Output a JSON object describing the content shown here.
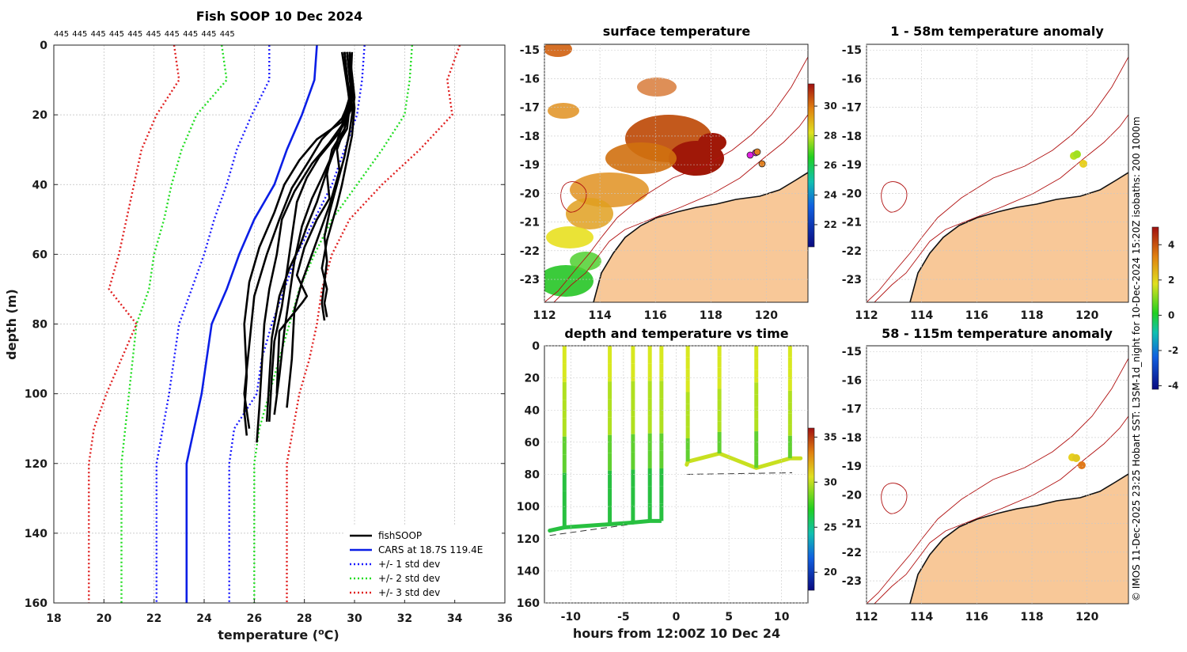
{
  "colors": {
    "fishsoop": "#000000",
    "cars": "#0a1ee6",
    "std1": "#1a1aff",
    "std2": "#22dd22",
    "std3": "#e02020",
    "land": "#f8c898",
    "isobath": "#b01010"
  },
  "chart_data": [
    {
      "id": "profile",
      "type": "line",
      "title": "Fish SOOP 10 Dec 2024",
      "xlabel_prefix": "temperature (",
      "xlabel_sup": "o",
      "xlabel_suffix": "C)",
      "ylabel": "depth (m)",
      "xlim": [
        18,
        36
      ],
      "ylim": [
        0,
        160
      ],
      "y_reversed": true,
      "xticks": [
        "18",
        "20",
        "22",
        "24",
        "26",
        "28",
        "30",
        "32",
        "34",
        "36"
      ],
      "yticks": [
        "0",
        "20",
        "40",
        "60",
        "80",
        "100",
        "120",
        "140",
        "160"
      ],
      "top_counts": [
        "445",
        "445",
        "445",
        "445",
        "445",
        "445",
        "445",
        "445",
        "445",
        "445"
      ],
      "series": [
        {
          "name": "CARS at 18.7S 119.4E",
          "style": "solid",
          "color_key": "cars",
          "x": [
            28.5,
            28.4,
            27.9,
            27.3,
            26.8,
            26.0,
            25.4,
            24.9,
            24.3,
            23.9,
            23.3,
            23.3
          ],
          "y": [
            0,
            10,
            20,
            30,
            40,
            50,
            60,
            70,
            80,
            100,
            120,
            160
          ]
        },
        {
          "name": "+/- 1 std dev (upper)",
          "style": "dotted",
          "color_key": "std1",
          "x": [
            30.4,
            30.3,
            30.1,
            29.6,
            29.1,
            28.4,
            27.7,
            27.2,
            26.7,
            26.3,
            26.1,
            25.2,
            25.0,
            25.0
          ],
          "y": [
            0,
            10,
            20,
            30,
            40,
            50,
            60,
            70,
            80,
            90,
            100,
            110,
            120,
            160
          ]
        },
        {
          "name": "+/- 1 std dev",
          "style": "dotted",
          "color_key": "std1",
          "x": [
            26.6,
            26.6,
            25.9,
            25.3,
            24.9,
            24.4,
            24.0,
            23.5,
            23.0,
            22.6,
            22.1,
            22.1
          ],
          "y": [
            0,
            10,
            20,
            30,
            40,
            50,
            60,
            70,
            80,
            100,
            120,
            160
          ]
        },
        {
          "name": "+/- 2 std dev (upper)",
          "style": "dotted",
          "color_key": "std2",
          "x": [
            32.3,
            32.2,
            32.0,
            31.1,
            30.1,
            29.1,
            28.4,
            27.8,
            27.4,
            27.0,
            26.6,
            26.2,
            26.0,
            26.0
          ],
          "y": [
            0,
            10,
            20,
            30,
            40,
            50,
            60,
            70,
            80,
            90,
            100,
            110,
            120,
            160
          ]
        },
        {
          "name": "+/- 2 std dev",
          "style": "dotted",
          "color_key": "std2",
          "x": [
            24.7,
            24.9,
            23.7,
            23.1,
            22.7,
            22.4,
            22.0,
            21.8,
            21.3,
            21.0,
            20.7,
            20.7
          ],
          "y": [
            0,
            10,
            20,
            30,
            40,
            50,
            60,
            70,
            80,
            100,
            120,
            160
          ]
        },
        {
          "name": "+/- 3 std dev (upper)",
          "style": "dotted",
          "color_key": "std3",
          "x": [
            34.2,
            33.7,
            33.9,
            32.6,
            31.1,
            29.8,
            29.1,
            28.7,
            28.5,
            28.2,
            27.8,
            27.3,
            27.3
          ],
          "y": [
            0,
            10,
            20,
            30,
            40,
            50,
            60,
            70,
            80,
            90,
            100,
            120,
            160
          ]
        },
        {
          "name": "+/- 3 std dev",
          "style": "dotted",
          "color_key": "std3",
          "x": [
            22.8,
            23.0,
            22.1,
            21.5,
            21.2,
            20.9,
            20.6,
            20.2,
            21.3,
            20.1,
            19.6,
            19.4,
            19.4
          ],
          "y": [
            0,
            10,
            20,
            30,
            40,
            50,
            60,
            70,
            80,
            100,
            110,
            120,
            160
          ]
        },
        {
          "name": "fishSOOP cast 1",
          "style": "solid",
          "color_key": "fishsoop",
          "x": [
            29.6,
            29.8,
            29.5,
            28.5,
            27.8,
            27.2,
            26.8,
            26.2,
            25.8,
            25.6,
            25.7,
            25.6,
            25.7
          ],
          "y": [
            2,
            15,
            22,
            27,
            33,
            40,
            48,
            58,
            68,
            80,
            95,
            105,
            112
          ]
        },
        {
          "name": "fishSOOP cast 2",
          "style": "solid",
          "color_key": "fishsoop",
          "x": [
            29.7,
            29.9,
            29.6,
            29.0,
            28.3,
            27.6,
            27.1,
            26.9,
            26.6,
            26.4,
            26.3,
            26.2,
            26.1
          ],
          "y": [
            2,
            15,
            22,
            28,
            34,
            42,
            50,
            60,
            70,
            80,
            92,
            104,
            114
          ]
        },
        {
          "name": "fishSOOP cast 3",
          "style": "solid",
          "color_key": "fishsoop",
          "x": [
            29.8,
            29.9,
            29.4,
            28.6,
            28.1,
            27.7,
            27.5,
            27.3,
            27.1,
            26.8,
            26.7,
            26.6
          ],
          "y": [
            2,
            18,
            25,
            32,
            38,
            45,
            55,
            65,
            75,
            85,
            95,
            108
          ]
        },
        {
          "name": "fishSOOP cast 4",
          "style": "solid",
          "color_key": "fishsoop",
          "x": [
            29.9,
            29.8,
            29.7,
            29.2,
            28.7,
            28.3,
            27.9,
            27.6,
            27.4,
            27.2,
            27.0,
            26.8
          ],
          "y": [
            2,
            18,
            24,
            30,
            38,
            44,
            52,
            62,
            72,
            82,
            95,
            106
          ]
        },
        {
          "name": "fishSOOP cast 5",
          "style": "solid",
          "color_key": "fishsoop",
          "x": [
            29.5,
            29.8,
            29.6,
            29.3,
            29.4,
            29.0,
            28.6,
            28.3,
            27.9,
            27.6,
            27.5,
            27.3
          ],
          "y": [
            2,
            16,
            24,
            30,
            36,
            46,
            54,
            60,
            68,
            76,
            90,
            104
          ]
        },
        {
          "name": "fishSOOP cast 6",
          "style": "solid",
          "color_key": "fishsoop",
          "x": [
            29.8,
            30.0,
            29.8,
            29.6,
            29.3,
            29.0,
            28.8,
            28.9,
            28.8,
            28.7,
            28.8
          ],
          "y": [
            2,
            15,
            25,
            32,
            40,
            48,
            55,
            62,
            68,
            74,
            79
          ]
        },
        {
          "name": "fishSOOP cast 7",
          "style": "solid",
          "color_key": "fishsoop",
          "x": [
            29.6,
            29.8,
            29.5,
            29.2,
            28.9,
            28.5,
            28.1,
            27.8,
            27.4,
            27.0,
            26.7,
            26.6,
            26.5
          ],
          "y": [
            2,
            17,
            23,
            30,
            36,
            45,
            52,
            58,
            64,
            72,
            84,
            96,
            108
          ]
        },
        {
          "name": "fishSOOP cast 8",
          "style": "solid",
          "color_key": "fishsoop",
          "x": [
            29.7,
            29.9,
            29.6,
            29.1,
            28.9,
            29.0,
            28.5,
            28.0,
            27.7,
            28.1,
            27.9,
            27.0,
            26.9
          ],
          "y": [
            2,
            16,
            24,
            30,
            37,
            44,
            50,
            58,
            66,
            72,
            74,
            82,
            100
          ]
        },
        {
          "name": "fishSOOP cast 9",
          "style": "solid",
          "color_key": "fishsoop",
          "x": [
            29.8,
            30.0,
            29.9,
            29.7,
            29.5,
            29.3,
            28.9,
            28.7,
            28.9,
            28.8,
            28.9
          ],
          "y": [
            2,
            18,
            26,
            33,
            40,
            46,
            56,
            64,
            70,
            74,
            78
          ]
        },
        {
          "name": "fishSOOP cast 10",
          "style": "solid",
          "color_key": "fishsoop",
          "x": [
            29.6,
            29.8,
            29.5,
            28.7,
            28.2,
            27.5,
            27.0,
            26.5,
            26.0,
            25.8,
            25.6,
            25.8
          ],
          "y": [
            2,
            16,
            21,
            27,
            33,
            41,
            50,
            60,
            72,
            86,
            100,
            110
          ]
        }
      ],
      "legend": {
        "placement": "bottom-right",
        "entries": [
          {
            "label": "fishSOOP",
            "style": "solid",
            "color_key": "fishsoop"
          },
          {
            "label": "CARS at 18.7S 119.4E",
            "style": "solid",
            "color_key": "cars"
          },
          {
            "label": "+/- 1 std dev",
            "style": "dotted",
            "color_key": "std1"
          },
          {
            "label": "+/- 2 std dev",
            "style": "dotted",
            "color_key": "std2"
          },
          {
            "label": "+/- 3 std dev",
            "style": "dotted",
            "color_key": "std3"
          }
        ]
      }
    },
    {
      "id": "sst_map",
      "type": "heatmap",
      "title": "surface temperature",
      "xlim": [
        112,
        121.5
      ],
      "ylim": [
        -23.8,
        -14.8
      ],
      "xticks": [
        "112",
        "114",
        "116",
        "118",
        "120"
      ],
      "yticks": [
        "-15",
        "-16",
        "-17",
        "-18",
        "-19",
        "-20",
        "-21",
        "-22",
        "-23"
      ],
      "colorbar": {
        "range": [
          20.5,
          31.5
        ],
        "ticks": [
          "30",
          "28",
          "26",
          "24",
          "22"
        ]
      }
    },
    {
      "id": "anom_shallow",
      "type": "heatmap",
      "title": "1 - 58m temperature anomaly",
      "xlim": [
        112,
        121.5
      ],
      "ylim": [
        -23.8,
        -14.8
      ],
      "xticks": [
        "112",
        "114",
        "116",
        "118",
        "120"
      ],
      "yticks": [
        "-15",
        "-16",
        "-17",
        "-18",
        "-19",
        "-20",
        "-21",
        "-22",
        "-23"
      ]
    },
    {
      "id": "anom_deep",
      "type": "heatmap",
      "title": "58 - 115m temperature anomaly",
      "xlim": [
        112,
        121.5
      ],
      "ylim": [
        -23.8,
        -14.8
      ],
      "xticks": [
        "112",
        "114",
        "116",
        "118",
        "120"
      ],
      "yticks": [
        "-15",
        "-16",
        "-17",
        "-18",
        "-19",
        "-20",
        "-21",
        "-22",
        "-23"
      ],
      "colorbar": {
        "range": [
          -4.2,
          5.0
        ],
        "ticks": [
          "4",
          "2",
          "0",
          "-2",
          "-4"
        ]
      }
    },
    {
      "id": "depth_time",
      "type": "scatter",
      "title": "depth and temperature vs time",
      "xlabel": "hours from 12:00Z 10 Dec 24",
      "xlim": [
        -12.5,
        12.5
      ],
      "ylim": [
        0,
        160
      ],
      "y_reversed": true,
      "xticks": [
        "-10",
        "-5",
        "0",
        "5",
        "10"
      ],
      "yticks": [
        "0",
        "20",
        "40",
        "60",
        "80",
        "100",
        "120",
        "140",
        "160"
      ],
      "colorbar": {
        "range": [
          18,
          36
        ],
        "ticks": [
          "35",
          "30",
          "25",
          "20"
        ]
      },
      "bottom_segments": [
        {
          "x": [
            -12,
            -2
          ],
          "depth": [
            118,
            109
          ]
        },
        {
          "x": [
            1,
            11
          ],
          "depth": [
            80,
            79
          ]
        }
      ],
      "dives": [
        {
          "t": -10.6,
          "bottom": 113
        },
        {
          "t": -6.3,
          "bottom": 111
        },
        {
          "t": -4.1,
          "bottom": 110
        },
        {
          "t": -2.5,
          "bottom": 109
        },
        {
          "t": -1.4,
          "bottom": 109
        },
        {
          "t": 1.1,
          "bottom": 72
        },
        {
          "t": 4.1,
          "bottom": 67
        },
        {
          "t": 7.6,
          "bottom": 76
        },
        {
          "t": 10.8,
          "bottom": 70
        }
      ]
    }
  ],
  "side_note": "© IMOS 11-Dec-2025 23:25 Hobart SST: L3SM-1d_night for 10-Dec-2024 15:20Z isobaths: 200  1000m"
}
